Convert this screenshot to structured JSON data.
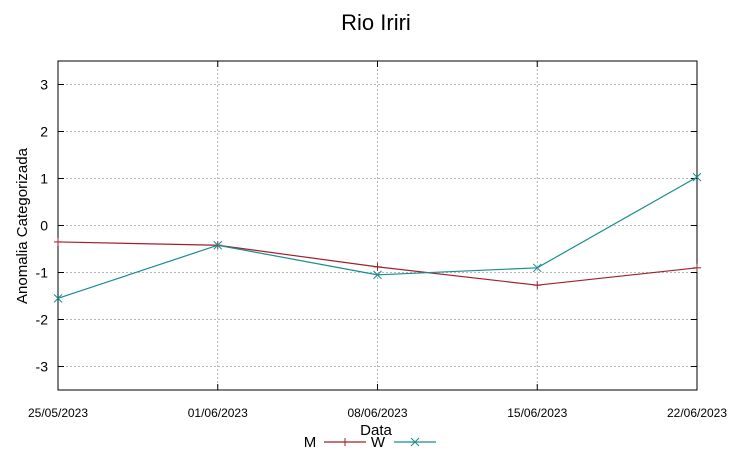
{
  "chart_data": {
    "type": "line",
    "title": "Rio Iriri",
    "xlabel": "Data",
    "ylabel": "Anomalia Categorizada",
    "x": [
      "25/05/2023",
      "01/06/2023",
      "08/06/2023",
      "15/06/2023",
      "22/06/2023"
    ],
    "xticks": [
      "25/05/2023",
      "01/06/2023",
      "08/06/2023",
      "15/06/2023",
      "22/06/2023"
    ],
    "ylim": [
      -3.5,
      3.5
    ],
    "yticks": [
      -3,
      -2,
      -1,
      0,
      1,
      2,
      3
    ],
    "grid": true,
    "legend_position": "bottom",
    "series": [
      {
        "name": "M",
        "color": "#a0202a",
        "marker": "plus",
        "values": [
          -0.35,
          -0.42,
          -0.88,
          -1.27,
          -0.9
        ]
      },
      {
        "name": "W",
        "color": "#1a8c8c",
        "marker": "cross",
        "values": [
          -1.55,
          -0.42,
          -1.05,
          -0.9,
          1.03
        ]
      }
    ]
  }
}
